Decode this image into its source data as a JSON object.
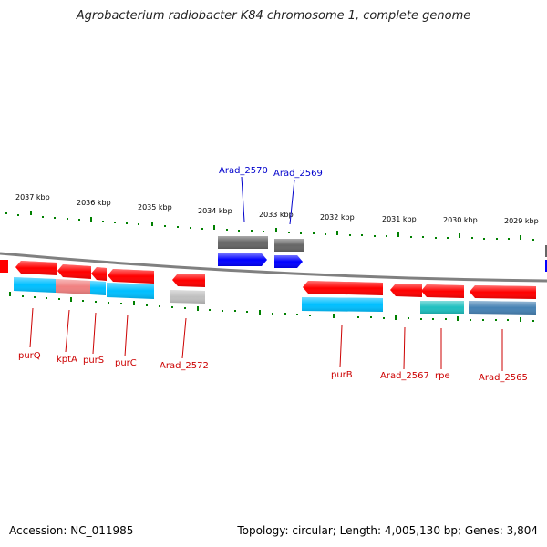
{
  "header": {
    "title": "Agrobacterium radiobacter K84 chromosome 1, complete genome"
  },
  "footer": {
    "accession": "Accession: NC_011985",
    "summary": "Topology: circular; Length: 4,005,130 bp; Genes: 3,804"
  },
  "colors": {
    "forward_gene": "#0000ff",
    "forward_gene_product": "#666666",
    "reverse_gene": "#ff0000",
    "reverse_product_cyan": "#00bfff",
    "reverse_product_teal": "#20c0c0",
    "reverse_product_steel": "#4682b4",
    "reverse_product_pink": "#f08080",
    "reverse_product_gray": "#c0c0c0",
    "backbone": "#808080",
    "tick": "#008000"
  },
  "scale_ticks": [
    "2037 kbp",
    "2036 kbp",
    "2035 kbp",
    "2034 kbp",
    "2033 kbp",
    "2032 kbp",
    "2031 kbp",
    "2030 kbp",
    "2029 kbp"
  ],
  "gene_labels_forward": [
    "Arad_2570",
    "Arad_2569"
  ],
  "gene_labels_reverse": [
    "purQ",
    "kptA",
    "purS",
    "purC",
    "Arad_2572",
    "purB",
    "Arad_2567",
    "rpe",
    "Arad_2565"
  ]
}
